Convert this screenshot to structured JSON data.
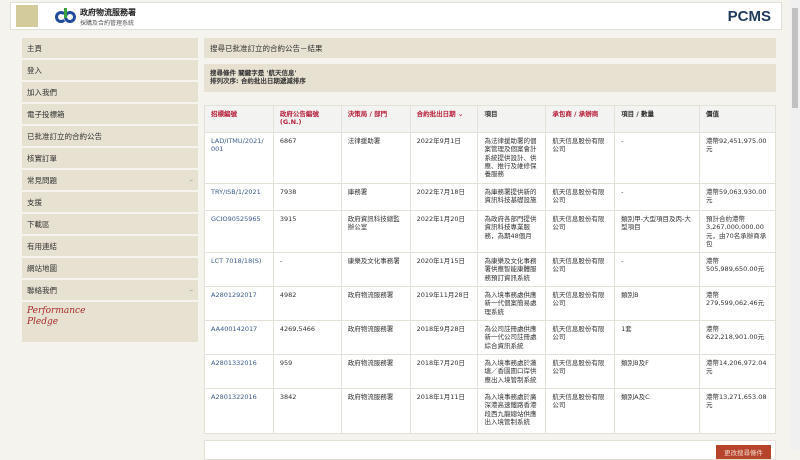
{
  "header": {
    "org_name": "政府物流服務署",
    "system_name": "採購及合約管理系統",
    "product": "PCMS"
  },
  "sidebar": {
    "items": [
      {
        "label": "主頁",
        "expand": ""
      },
      {
        "label": "登入",
        "expand": ""
      },
      {
        "label": "加入我們",
        "expand": ""
      },
      {
        "label": "電子投標箱",
        "expand": ""
      },
      {
        "label": "已批准訂立的合約公告",
        "expand": ""
      },
      {
        "label": "核實訂單",
        "expand": ""
      },
      {
        "label": "常見問題",
        "expand": "–"
      },
      {
        "label": "支援",
        "expand": ""
      },
      {
        "label": "下載區",
        "expand": ""
      },
      {
        "label": "有用連結",
        "expand": ""
      },
      {
        "label": "網站地圖",
        "expand": ""
      },
      {
        "label": "聯絡我們",
        "expand": "–"
      }
    ],
    "pledge": {
      "line1": "Performance",
      "line2": "Pledge"
    }
  },
  "main": {
    "title": "搜尋已批准訂立的合約公告－結果",
    "criteria_line1": "搜尋條件  關鍵字是 '航天信息'",
    "criteria_line2": "排列次序:  合約批出日期遞減排序",
    "footer_button": "更改搜尋條件"
  },
  "table": {
    "headers": [
      "招標編號",
      "政府公告編號 (G.N.)",
      "決策局 / 部門",
      "合約批出日期 ⌄",
      "項目",
      "承包商 / 承辦商",
      "項目 / 數量",
      "價值"
    ],
    "rows": [
      [
        "LAD/ITMU/2021/001",
        "6867",
        "法律援助署",
        "2022年9月1日",
        "為法律援助署的個案管理及個案會計系統提供設計、供應、推行及維修保養服務",
        "航天信息股份有限公司",
        "-",
        "港幣92,451,975.00元"
      ],
      [
        "TRY/ISB/1/2021",
        "7938",
        "庫務署",
        "2022年7月18日",
        "為庫務署提供新的資訊科技基礎設施",
        "航天信息股份有限公司",
        "-",
        "港幣59,063,930.00元"
      ],
      [
        "GCIO90525965",
        "3915",
        "政府資訊科技總監辦公室",
        "2022年1月20日",
        "為政府各部門提供資訊科技專業服務，為期48個月",
        "航天信息股份有限公司",
        "類別甲-大型項目及丙-大型項目",
        "預計合約港幣3,267,000,000.00元，由70名承辦商承包"
      ],
      [
        "LCT 7018/18(S)",
        "-",
        "康樂及文化事務署",
        "2020年1月15日",
        "為康樂及文化事務署供應智能康體服務預訂資訊系統",
        "航天信息股份有限公司",
        "-",
        "港幣505,989,650.00元"
      ],
      [
        "A2801292017",
        "4982",
        "政府物流服務署",
        "2019年11月28日",
        "為入境事務處供應新一代個案簡易處理系統",
        "航天信息股份有限公司",
        "類別B",
        "港幣279,599,062.46元"
      ],
      [
        "AA400142017",
        "4269,5466",
        "政府物流服務署",
        "2018年9月28日",
        "為公司註冊處供應新一代公司註冊處綜合資訊系統",
        "航天信息股份有限公司",
        "1套",
        "港幣622,218,901.00元"
      ],
      [
        "A2801332016",
        "959",
        "政府物流服務署",
        "2018年7月20日",
        "為入境事務處於蓮塘／香園圍口岸供應出入境管制系統",
        "航天信息股份有限公司",
        "類別B及F",
        "港幣14,206,972.04元"
      ],
      [
        "A2801322016",
        "3842",
        "政府物流服務署",
        "2018年1月11日",
        "為入境事務處於廣深港高速鐵路香港段西九龍總站供應出入境管制系統",
        "航天信息股份有限公司",
        "類別A及C",
        "港幣13,271,653.08元"
      ]
    ]
  },
  "colors": {
    "accent_red": "#b8213a",
    "sidebar_bg": "#e6e1d1",
    "link": "#3a5b8c",
    "button": "#b5442a"
  }
}
